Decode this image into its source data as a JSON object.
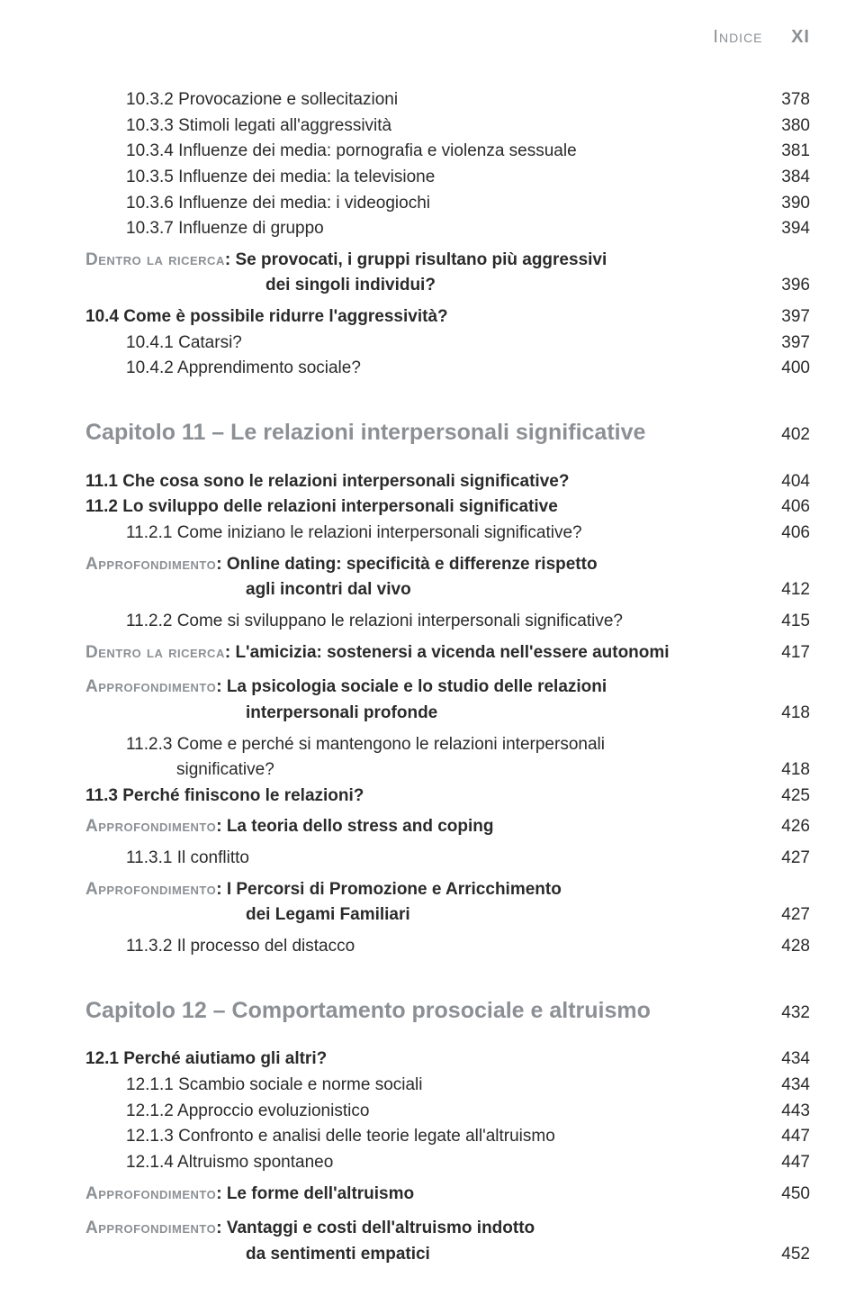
{
  "header": {
    "label": "Indice",
    "page": "XI"
  },
  "colors": {
    "muted": "#8c9094",
    "text": "#2a2a2a",
    "background": "#ffffff"
  },
  "entries": [
    {
      "type": "sub",
      "text": "10.3.2 Provocazione e sollecitazioni",
      "page": "378"
    },
    {
      "type": "sub",
      "text": "10.3.3 Stimoli legati all'aggressività",
      "page": "380"
    },
    {
      "type": "sub",
      "text": "10.3.4 Influenze dei media: pornografia e violenza sessuale",
      "page": "381"
    },
    {
      "type": "sub",
      "text": "10.3.5 Influenze dei media: la televisione",
      "page": "384"
    },
    {
      "type": "sub",
      "text": "10.3.6 Influenze dei media: i videogiochi",
      "page": "390"
    },
    {
      "type": "sub",
      "text": "10.3.7 Influenze di gruppo",
      "page": "394"
    },
    {
      "type": "spacer-sm"
    },
    {
      "type": "callout",
      "label": "Dentro la ricerca",
      "text": ": Se provocati, i gruppi risultano più aggressivi",
      "page": ""
    },
    {
      "type": "callout-cont",
      "indentClass": "co-cont2",
      "text": "dei singoli individui?",
      "page": "396"
    },
    {
      "type": "spacer-sm"
    },
    {
      "type": "section",
      "text": "10.4 Come è possibile ridurre l'aggressività?",
      "page": "397"
    },
    {
      "type": "sub",
      "text": "10.4.1 Catarsi?",
      "page": "397"
    },
    {
      "type": "sub",
      "text": "10.4.2 Apprendimento sociale?",
      "page": "400"
    },
    {
      "type": "chapter",
      "text": "Capitolo 11 – Le relazioni interpersonali significative",
      "page": "402"
    },
    {
      "type": "section",
      "text": "11.1 Che cosa sono le relazioni interpersonali significative?",
      "page": "404"
    },
    {
      "type": "section",
      "text": "11.2 Lo sviluppo delle relazioni interpersonali significative",
      "page": "406"
    },
    {
      "type": "sub",
      "text": "11.2.1 Come iniziano le relazioni interpersonali significative?",
      "page": "406"
    },
    {
      "type": "spacer-sm"
    },
    {
      "type": "callout",
      "label": "Approfondimento",
      "text": ": Online dating: specificità e differenze rispetto",
      "page": ""
    },
    {
      "type": "callout-cont",
      "indentClass": "co-cont",
      "text": "agli incontri dal vivo",
      "page": "412"
    },
    {
      "type": "spacer-sm"
    },
    {
      "type": "sub",
      "text": "11.2.2 Come si sviluppano le relazioni interpersonali significative?",
      "page": "415"
    },
    {
      "type": "spacer-sm"
    },
    {
      "type": "callout",
      "label": "Dentro la ricerca",
      "text": ": L'amicizia: sostenersi a vicenda nell'essere autonomi",
      "page": "417"
    },
    {
      "type": "spacer-md"
    },
    {
      "type": "callout",
      "label": "Approfondimento",
      "text": ": La psicologia sociale e lo studio delle relazioni",
      "page": ""
    },
    {
      "type": "callout-cont",
      "indentClass": "co-cont",
      "text": "interpersonali profonde",
      "page": "418"
    },
    {
      "type": "spacer-sm"
    },
    {
      "type": "sub",
      "text": "11.2.3 Come e perché si mantengono le relazioni interpersonali",
      "page": ""
    },
    {
      "type": "sub-cont",
      "text": "significative?",
      "page": "418"
    },
    {
      "type": "section",
      "text": "11.3 Perché finiscono le relazioni?",
      "page": "425"
    },
    {
      "type": "spacer-sm"
    },
    {
      "type": "callout",
      "label": "Approfondimento",
      "text": ": La teoria dello stress and coping",
      "page": "426"
    },
    {
      "type": "spacer-sm"
    },
    {
      "type": "sub",
      "text": "11.3.1 Il conflitto",
      "page": "427"
    },
    {
      "type": "spacer-sm"
    },
    {
      "type": "callout",
      "label": "Approfondimento",
      "text": ": I Percorsi di Promozione e Arricchimento",
      "page": ""
    },
    {
      "type": "callout-cont",
      "indentClass": "co-cont",
      "text": "dei Legami Familiari",
      "page": "427"
    },
    {
      "type": "spacer-sm"
    },
    {
      "type": "sub",
      "text": "11.3.2 Il processo del distacco",
      "page": "428"
    },
    {
      "type": "chapter",
      "text": "Capitolo 12 – Comportamento prosociale e altruismo",
      "page": "432"
    },
    {
      "type": "section",
      "text": "12.1 Perché aiutiamo gli altri?",
      "page": "434"
    },
    {
      "type": "sub",
      "text": "12.1.1 Scambio sociale e norme sociali",
      "page": "434"
    },
    {
      "type": "sub",
      "text": "12.1.2 Approccio evoluzionistico",
      "page": "443"
    },
    {
      "type": "sub",
      "text": "12.1.3 Confronto e analisi delle teorie legate all'altruismo",
      "page": "447"
    },
    {
      "type": "sub",
      "text": "12.1.4 Altruismo spontaneo",
      "page": "447"
    },
    {
      "type": "spacer-sm"
    },
    {
      "type": "callout",
      "label": "Approfondimento",
      "text": ": Le forme dell'altruismo",
      "page": "450"
    },
    {
      "type": "spacer-md"
    },
    {
      "type": "callout",
      "label": "Approfondimento",
      "text": ": Vantaggi e costi dell'altruismo indotto",
      "page": ""
    },
    {
      "type": "callout-cont",
      "indentClass": "co-cont",
      "text": "da sentimenti empatici",
      "page": "452"
    }
  ]
}
